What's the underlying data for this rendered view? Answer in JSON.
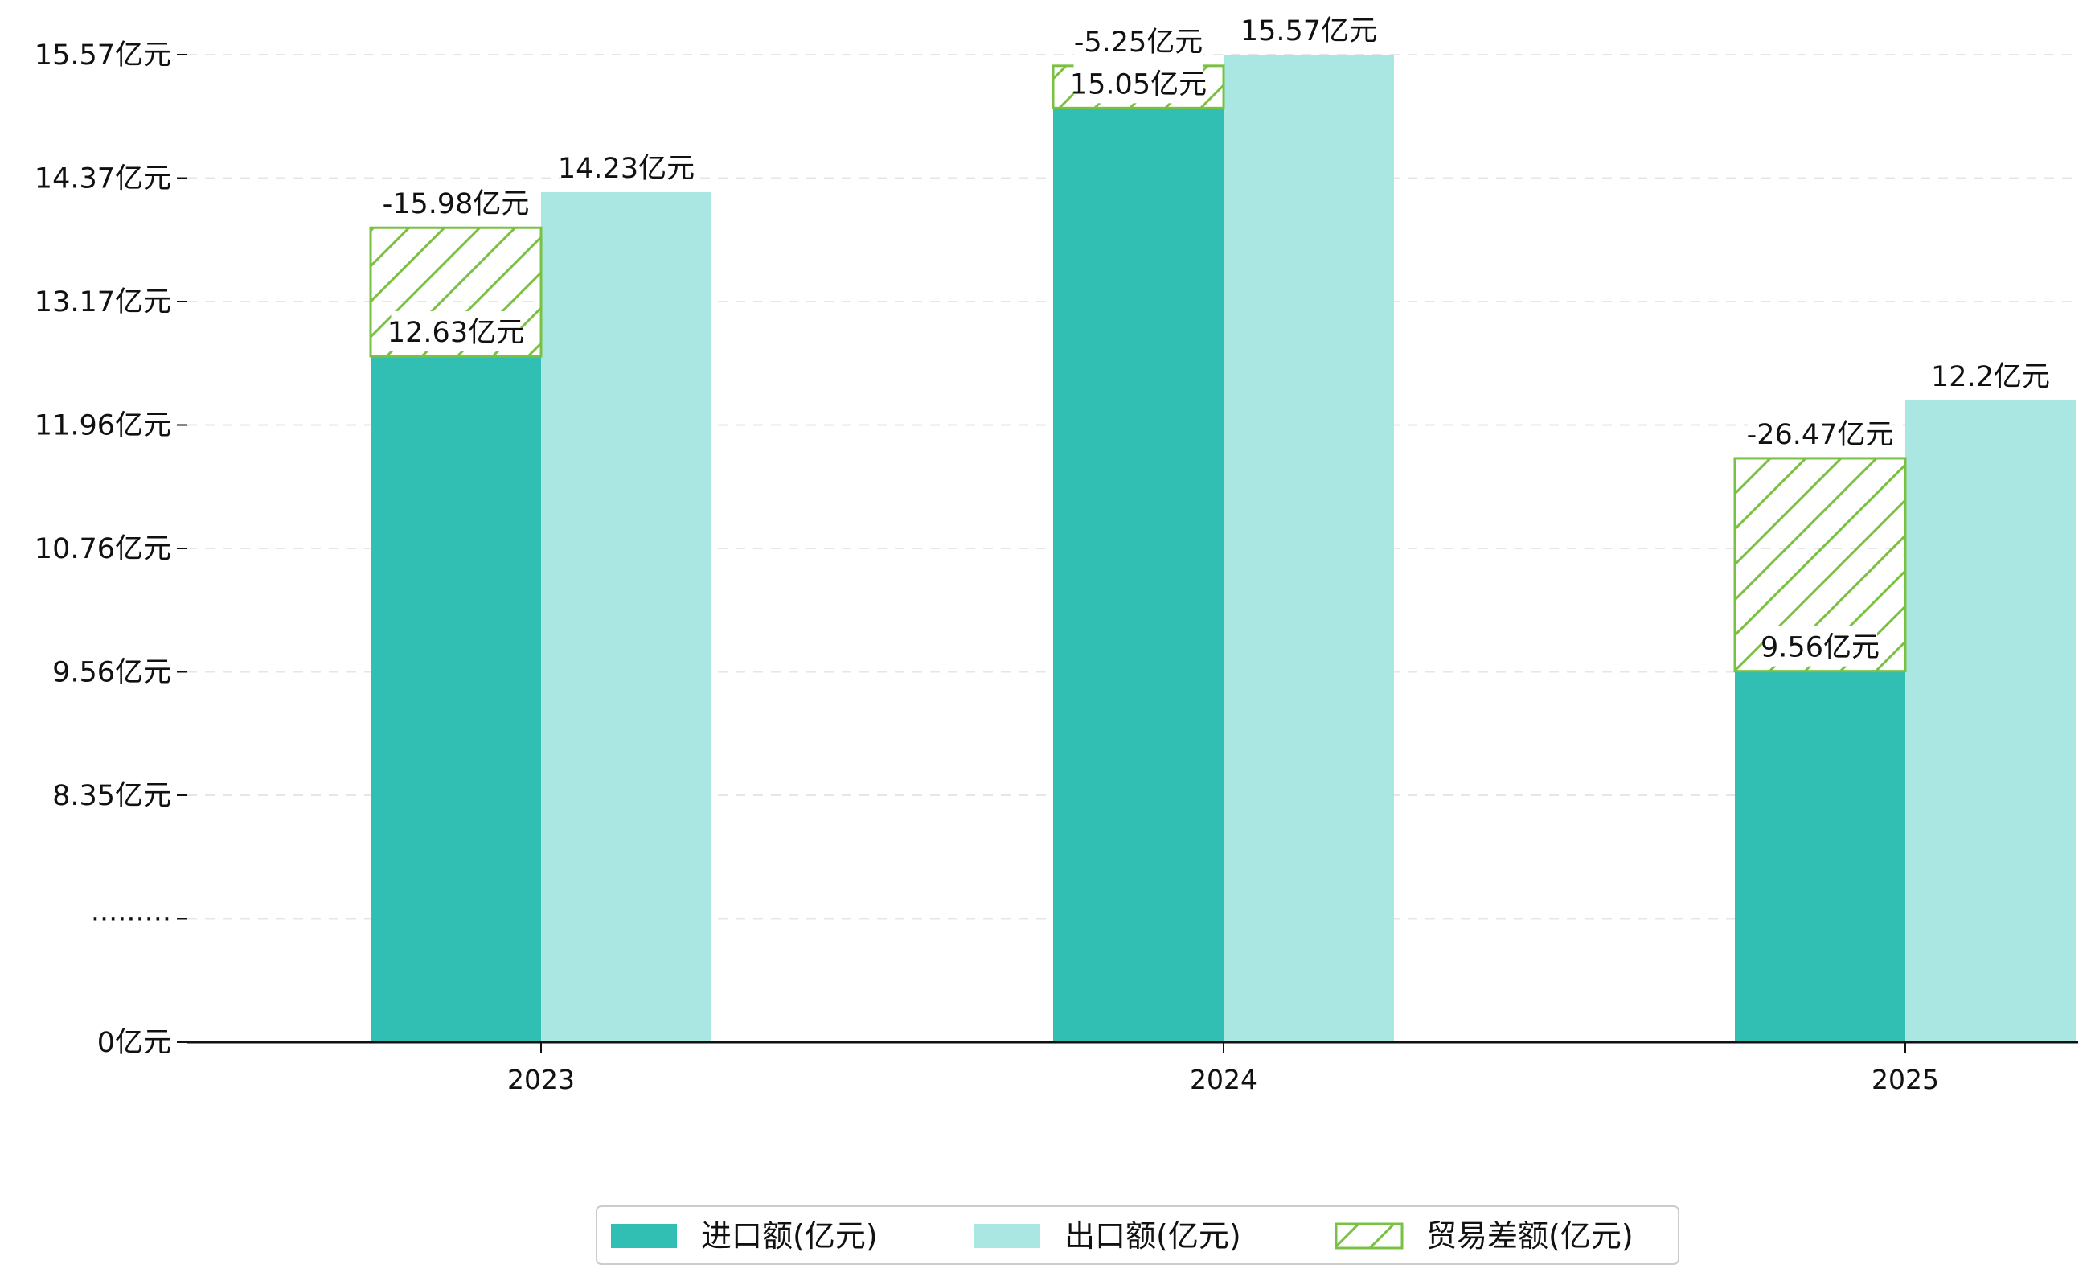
{
  "chart_data": {
    "type": "bar",
    "categories": [
      "2023",
      "2024",
      "2025"
    ],
    "series": [
      {
        "name": "进口额(亿元)",
        "color": "#31bfb3",
        "values": [
          12.63,
          15.05,
          9.56
        ],
        "labels": [
          "12.63亿元",
          "15.05亿元",
          "9.56亿元"
        ]
      },
      {
        "name": "出口额(亿元)",
        "color": "#aae7e2",
        "values": [
          14.23,
          15.57,
          12.2
        ],
        "labels": [
          "14.23亿元",
          "15.57亿元",
          "12.2亿元"
        ]
      },
      {
        "name": "贸易差额(亿元)",
        "color": "#7ac143",
        "pattern": "hatch",
        "values": [
          -15.98,
          -5.25,
          -26.47
        ],
        "labels": [
          "-15.98亿元",
          "-5.25亿元",
          "-26.47亿元"
        ]
      }
    ],
    "yaxis": {
      "ticks": [
        {
          "label": "0亿元",
          "position": 0
        },
        {
          "label": "·········",
          "position": 1
        },
        {
          "label": "8.35亿元",
          "position": 2
        },
        {
          "label": "9.56亿元",
          "position": 3
        },
        {
          "label": "10.76亿元",
          "position": 4
        },
        {
          "label": "11.96亿元",
          "position": 5
        },
        {
          "label": "13.17亿元",
          "position": 6
        },
        {
          "label": "14.37亿元",
          "position": 7
        },
        {
          "label": "15.57亿元",
          "position": 8
        }
      ],
      "broken_axis": true,
      "broken_from": 0,
      "broken_to": 7.15
    },
    "legend_position": "bottom-center",
    "grid": true
  }
}
